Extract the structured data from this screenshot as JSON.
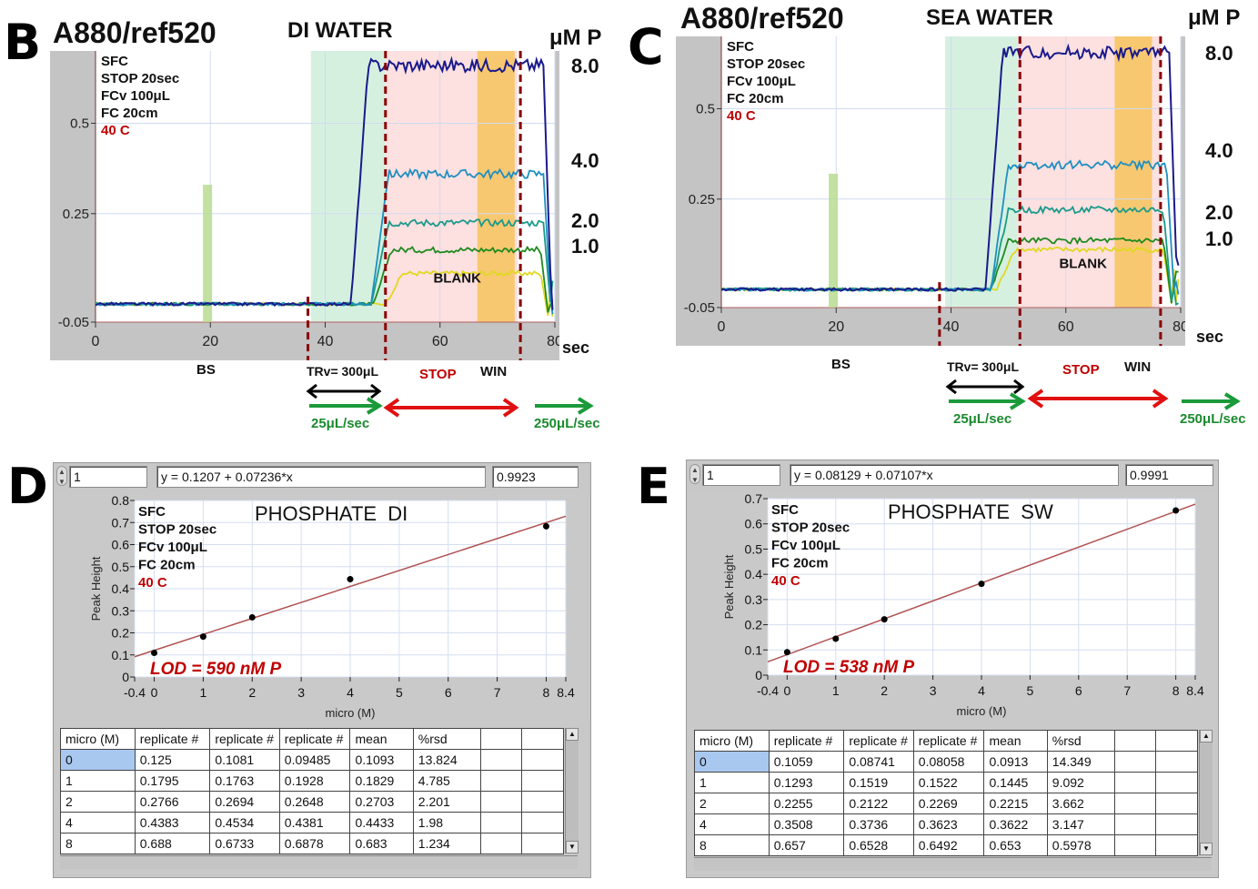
{
  "panels": {
    "B": {
      "letter": "B",
      "title": "A880/ref520",
      "subtitle": "DI WATER",
      "unit_label": "μM P",
      "annotations": [
        "SFC",
        "STOP 20sec",
        "FCv 100μL",
        "FC 20cm"
      ],
      "temp": "40 C",
      "conc_labels": [
        "8.0",
        "4.0",
        "2.0",
        "1.0"
      ],
      "blank_label": "BLANK",
      "x_unit": "sec",
      "bs_label": "BS",
      "trv_label": "TRv= 300μL",
      "stop_label": "STOP",
      "win_label": "WIN",
      "flow1_label": "25μL/sec",
      "flow2_label": "250μL/sec"
    },
    "C": {
      "letter": "C",
      "title": "A880/ref520",
      "subtitle": "SEA WATER",
      "unit_label": "μM P",
      "annotations": [
        "SFC",
        "STOP 20sec",
        "FCv 100μL",
        "FC 20cm"
      ],
      "temp": "40 C",
      "conc_labels": [
        "8.0",
        "4.0",
        "2.0",
        "1.0"
      ],
      "blank_label": "BLANK",
      "x_unit": "sec",
      "bs_label": "BS",
      "trv_label": "TRv= 300μL",
      "stop_label": "STOP",
      "win_label": "WIN",
      "flow1_label": "25μL/sec",
      "flow2_label": "250μL/sec"
    },
    "D": {
      "letter": "D",
      "index_value": "1",
      "equation": "y = 0.1207 + 0.07236*x",
      "r_value": "0.9923",
      "title": "PHOSPHATE  DI",
      "annotations": [
        "SFC",
        "STOP 20sec",
        "FCv 100μL",
        "FC 20cm"
      ],
      "temp": "40 C",
      "lod": "LOD = 590 nM P",
      "table": {
        "headers": [
          "micro (M)",
          "replicate #",
          "replicate #",
          "replicate #",
          "mean",
          "%rsd",
          "",
          ""
        ],
        "rows": [
          [
            "0",
            "0.125",
            "0.1081",
            "0.09485",
            "0.1093",
            "13.824",
            "",
            ""
          ],
          [
            "1",
            "0.1795",
            "0.1763",
            "0.1928",
            "0.1829",
            "4.785",
            "",
            ""
          ],
          [
            "2",
            "0.2766",
            "0.2694",
            "0.2648",
            "0.2703",
            "2.201",
            "",
            ""
          ],
          [
            "4",
            "0.4383",
            "0.4534",
            "0.4381",
            "0.4433",
            "1.98",
            "",
            ""
          ],
          [
            "8",
            "0.688",
            "0.6733",
            "0.6878",
            "0.683",
            "1.234",
            "",
            ""
          ]
        ]
      }
    },
    "E": {
      "letter": "E",
      "index_value": "1",
      "equation": "y = 0.08129 + 0.07107*x",
      "r_value": "0.9991",
      "title": "PHOSPHATE  SW",
      "annotations": [
        "SFC",
        "STOP 20sec",
        "FCv 100μL",
        "FC 20cm"
      ],
      "temp": "40 C",
      "lod": "LOD = 538 nM P",
      "table": {
        "headers": [
          "micro (M)",
          "replicate #",
          "replicate #",
          "replicate #",
          "mean",
          "%rsd",
          "",
          ""
        ],
        "rows": [
          [
            "0",
            "0.1059",
            "0.08741",
            "0.08058",
            "0.0913",
            "14.349",
            "",
            ""
          ],
          [
            "1",
            "0.1293",
            "0.1519",
            "0.1522",
            "0.1445",
            "9.092",
            "",
            ""
          ],
          [
            "2",
            "0.2255",
            "0.2122",
            "0.2269",
            "0.2215",
            "3.662",
            "",
            ""
          ],
          [
            "4",
            "0.3508",
            "0.3736",
            "0.3623",
            "0.3622",
            "3.147",
            "",
            ""
          ],
          [
            "8",
            "0.657",
            "0.6528",
            "0.6492",
            "0.653",
            "0.5978",
            "",
            ""
          ]
        ]
      }
    }
  },
  "colors": {
    "series_8": "#1a1a8c",
    "series_4": "#1f8fc0",
    "series_2": "#1a9a8a",
    "series_1": "#1f8a1f",
    "series_blank": "#e0d820",
    "green_zone": "#d6f0e0",
    "stop_zone": "#fde0e0",
    "win_zone": "#f8c870",
    "dashed": "#8b0000",
    "fit_line": "#b05050"
  },
  "chart_data": [
    {
      "id": "B",
      "type": "line",
      "title": "A880/ref520 DI WATER",
      "xlabel": "sec",
      "ylabel": "",
      "xlim": [
        0,
        80
      ],
      "ylim": [
        -0.05,
        0.7
      ],
      "xticks": [
        0,
        20,
        40,
        60,
        80
      ],
      "yticks": [
        -0.05,
        0.25,
        0.5
      ],
      "ytick_labels": [
        "-0.05",
        "0.25",
        "0.5"
      ],
      "grid": true,
      "baseline": 0.0,
      "regions": [
        {
          "name": "TRv",
          "x": [
            37.5,
            50.5
          ],
          "color": "green"
        },
        {
          "name": "STOP",
          "x": [
            50.5,
            73.5
          ],
          "color": "pink"
        },
        {
          "name": "WIN",
          "x": [
            66.5,
            73
          ],
          "color": "orange"
        }
      ],
      "markers": [
        {
          "name": "BS",
          "x": 19.5,
          "y_top": 0.33
        },
        {
          "name": "dash1",
          "x": 37
        },
        {
          "name": "dash2",
          "x": 50.5
        },
        {
          "name": "dash3",
          "x": 74
        }
      ],
      "series": [
        {
          "name": "8.0 μM P",
          "rise": 44.5,
          "plateau": 0.66,
          "fall": 78
        },
        {
          "name": "4.0 μM P",
          "rise": 48,
          "plateau": 0.36,
          "fall": 78
        },
        {
          "name": "2.0 μM P",
          "rise": 48,
          "plateau": 0.225,
          "fall": 78
        },
        {
          "name": "1.0 μM P",
          "rise": 48.5,
          "plateau": 0.15,
          "fall": 77.5
        },
        {
          "name": "BLANK",
          "rise": 50.5,
          "plateau": 0.085,
          "fall": 77.5
        }
      ]
    },
    {
      "id": "C",
      "type": "line",
      "title": "A880/ref520 SEA WATER",
      "xlabel": "sec",
      "ylabel": "",
      "xlim": [
        0,
        80
      ],
      "ylim": [
        -0.05,
        0.7
      ],
      "xticks": [
        0,
        20,
        40,
        60,
        80
      ],
      "yticks": [
        -0.05,
        0.25,
        0.5
      ],
      "ytick_labels": [
        "-0.05",
        "0.25",
        "0.5"
      ],
      "grid": true,
      "baseline": 0.0,
      "regions": [
        {
          "name": "TRv",
          "x": [
            39,
            51.5
          ],
          "color": "green"
        },
        {
          "name": "STOP",
          "x": [
            51.5,
            76.5
          ],
          "color": "pink"
        },
        {
          "name": "WIN",
          "x": [
            68.5,
            75
          ],
          "color": "orange"
        }
      ],
      "markers": [
        {
          "name": "BS",
          "x": 19.5,
          "y_top": 0.32
        },
        {
          "name": "dash1",
          "x": 38
        },
        {
          "name": "dash2",
          "x": 52
        },
        {
          "name": "dash3",
          "x": 76.5
        }
      ],
      "series": [
        {
          "name": "8.0 μM P",
          "rise": 46,
          "plateau": 0.655,
          "fall": 78
        },
        {
          "name": "4.0 μM P",
          "rise": 47,
          "plateau": 0.345,
          "fall": 77.5
        },
        {
          "name": "2.0 μM P",
          "rise": 47,
          "plateau": 0.22,
          "fall": 77
        },
        {
          "name": "1.0 μM P",
          "rise": 47,
          "plateau": 0.135,
          "fall": 77
        },
        {
          "name": "BLANK",
          "rise": 48,
          "plateau": 0.11,
          "fall": 77
        }
      ]
    },
    {
      "id": "D",
      "type": "scatter",
      "title": "PHOSPHATE  DI",
      "xlabel": "micro (M)",
      "ylabel": "Peak Height",
      "xlim": [
        -0.4,
        8.4
      ],
      "ylim": [
        0,
        0.8
      ],
      "xticks": [
        -0.4,
        0,
        1,
        2,
        3,
        4,
        5,
        6,
        7,
        8,
        8.4
      ],
      "yticks": [
        0,
        0.1,
        0.2,
        0.3,
        0.4,
        0.5,
        0.6,
        0.7,
        0.8
      ],
      "grid": true,
      "x": [
        0,
        1,
        2,
        4,
        8
      ],
      "y": [
        0.1093,
        0.1829,
        0.2703,
        0.4433,
        0.683
      ],
      "fit": {
        "intercept": 0.1207,
        "slope": 0.07236,
        "r": 0.9923
      }
    },
    {
      "id": "E",
      "type": "scatter",
      "title": "PHOSPHATE  SW",
      "xlabel": "micro (M)",
      "ylabel": "Peak Height",
      "xlim": [
        -0.4,
        8.4
      ],
      "ylim": [
        0,
        0.7
      ],
      "xticks": [
        -0.4,
        0,
        1,
        2,
        3,
        4,
        5,
        6,
        7,
        8,
        8.4
      ],
      "yticks": [
        0,
        0.1,
        0.2,
        0.3,
        0.4,
        0.5,
        0.6,
        0.7
      ],
      "grid": true,
      "x": [
        0,
        1,
        2,
        4,
        8
      ],
      "y": [
        0.0913,
        0.1445,
        0.2215,
        0.3622,
        0.653
      ],
      "fit": {
        "intercept": 0.08129,
        "slope": 0.07107,
        "r": 0.9991
      }
    }
  ]
}
